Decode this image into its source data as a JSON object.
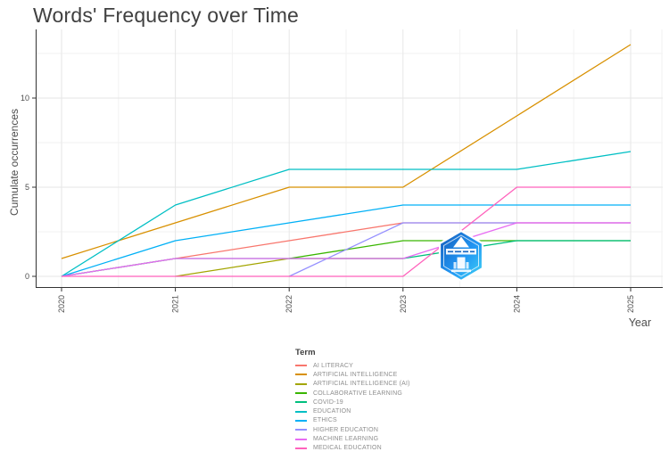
{
  "chart_data": {
    "type": "line",
    "title": "Words' Frequency over Time",
    "xlabel": "Year",
    "ylabel": "Cumulate occurrences",
    "legend_title": "Term",
    "x_ticks": [
      "2020",
      "2021",
      "2022",
      "2023",
      "2024",
      "2025"
    ],
    "y_ticks": [
      "0",
      "5",
      "10"
    ],
    "xlim": [
      2019.75,
      2025.28
    ],
    "ylim": [
      -0.65,
      13.65
    ],
    "grid": "major and minor, light gray on white",
    "legend_position": "bottom-center",
    "x_tick_label_rotation": 90,
    "watermark_icon": "hexagon-university-badge-logo",
    "series": [
      {
        "name": "AI LITERACY",
        "color": "#F8766D",
        "points": [
          [
            2020,
            0
          ],
          [
            2021,
            1
          ],
          [
            2022,
            2
          ],
          [
            2023,
            3
          ],
          [
            2024,
            3
          ],
          [
            2025,
            3
          ]
        ]
      },
      {
        "name": "ARTIFICIAL INTELLIGENCE",
        "color": "#D89000",
        "points": [
          [
            2020,
            1
          ],
          [
            2021,
            3
          ],
          [
            2022,
            5
          ],
          [
            2023,
            5
          ],
          [
            2024,
            9
          ],
          [
            2025,
            13
          ]
        ]
      },
      {
        "name": "ARTIFICIAL INTELLIGENCE (AI)",
        "color": "#A3A500",
        "points": [
          [
            2021,
            0
          ],
          [
            2022,
            1
          ],
          [
            2023,
            1
          ]
        ]
      },
      {
        "name": "COLLABORATIVE LEARNING",
        "color": "#39B600",
        "points": [
          [
            2022,
            1
          ],
          [
            2023,
            2
          ],
          [
            2024,
            2
          ],
          [
            2025,
            2
          ]
        ]
      },
      {
        "name": "COVID-19",
        "color": "#00BF7D",
        "points": [
          [
            2020,
            0
          ],
          [
            2021,
            1
          ],
          [
            2022,
            1
          ],
          [
            2023,
            1
          ],
          [
            2024,
            2
          ],
          [
            2025,
            2
          ]
        ]
      },
      {
        "name": "EDUCATION",
        "color": "#00BFC4",
        "points": [
          [
            2020,
            0
          ],
          [
            2021,
            4
          ],
          [
            2022,
            6
          ],
          [
            2023,
            6
          ],
          [
            2024,
            6
          ],
          [
            2025,
            7
          ]
        ]
      },
      {
        "name": "ETHICS",
        "color": "#00B0F6",
        "points": [
          [
            2020,
            0
          ],
          [
            2021,
            2
          ],
          [
            2022,
            3
          ],
          [
            2023,
            4
          ],
          [
            2024,
            4
          ],
          [
            2025,
            4
          ]
        ]
      },
      {
        "name": "HIGHER EDUCATION",
        "color": "#9590FF",
        "points": [
          [
            2022,
            0
          ],
          [
            2023,
            3
          ],
          [
            2024,
            3
          ],
          [
            2025,
            3
          ]
        ]
      },
      {
        "name": "MACHINE LEARNING",
        "color": "#E76BF3",
        "points": [
          [
            2020,
            0
          ],
          [
            2021,
            1
          ],
          [
            2022,
            1
          ],
          [
            2023,
            1
          ],
          [
            2024,
            3
          ],
          [
            2025,
            3
          ]
        ]
      },
      {
        "name": "MEDICAL EDUCATION",
        "color": "#FF62BC",
        "points": [
          [
            2020,
            0
          ],
          [
            2021,
            0
          ],
          [
            2022,
            0
          ],
          [
            2023,
            0
          ],
          [
            2024,
            5
          ],
          [
            2025,
            5
          ]
        ]
      }
    ],
    "colors": {
      "title_text": "#404040",
      "axis_line": "#333333",
      "tick_label": "#4d4d4d",
      "legend_label": "#8e8e8e",
      "grid_major": "#e6e6e6",
      "grid_minor": "#f2f2f2",
      "watermark_blue_dark": "#1459b8",
      "watermark_blue_light": "#40d6f5"
    }
  }
}
